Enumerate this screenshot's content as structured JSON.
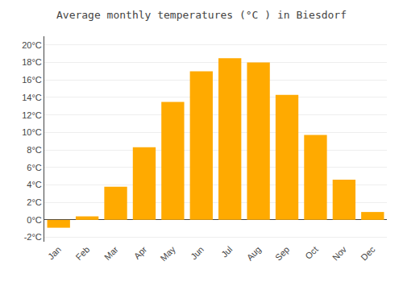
{
  "chart_data": {
    "type": "bar",
    "title": "Average monthly temperatures (°C ) in Biesdorf",
    "categories": [
      "Jan",
      "Feb",
      "Mar",
      "Apr",
      "May",
      "Jun",
      "Jul",
      "Aug",
      "Sep",
      "Oct",
      "Nov",
      "Dec"
    ],
    "values": [
      -0.9,
      0.4,
      3.8,
      8.3,
      13.5,
      17.0,
      18.5,
      18.0,
      14.3,
      9.7,
      4.6,
      0.9
    ],
    "color": "#FFAA00",
    "ylim": [
      -2.5,
      21
    ],
    "yticks": [
      {
        "value": -2,
        "label": "-2°C"
      },
      {
        "value": 0,
        "label": "0°C"
      },
      {
        "value": 2,
        "label": "2°C"
      },
      {
        "value": 4,
        "label": "4°C"
      },
      {
        "value": 6,
        "label": "6°C"
      },
      {
        "value": 8,
        "label": "8°C"
      },
      {
        "value": 10,
        "label": "10°C"
      },
      {
        "value": 12,
        "label": "12°C"
      },
      {
        "value": 14,
        "label": "14°C"
      },
      {
        "value": 16,
        "label": "16°C"
      },
      {
        "value": 18,
        "label": "18°C"
      },
      {
        "value": 20,
        "label": "20°C"
      }
    ],
    "grid": true
  }
}
